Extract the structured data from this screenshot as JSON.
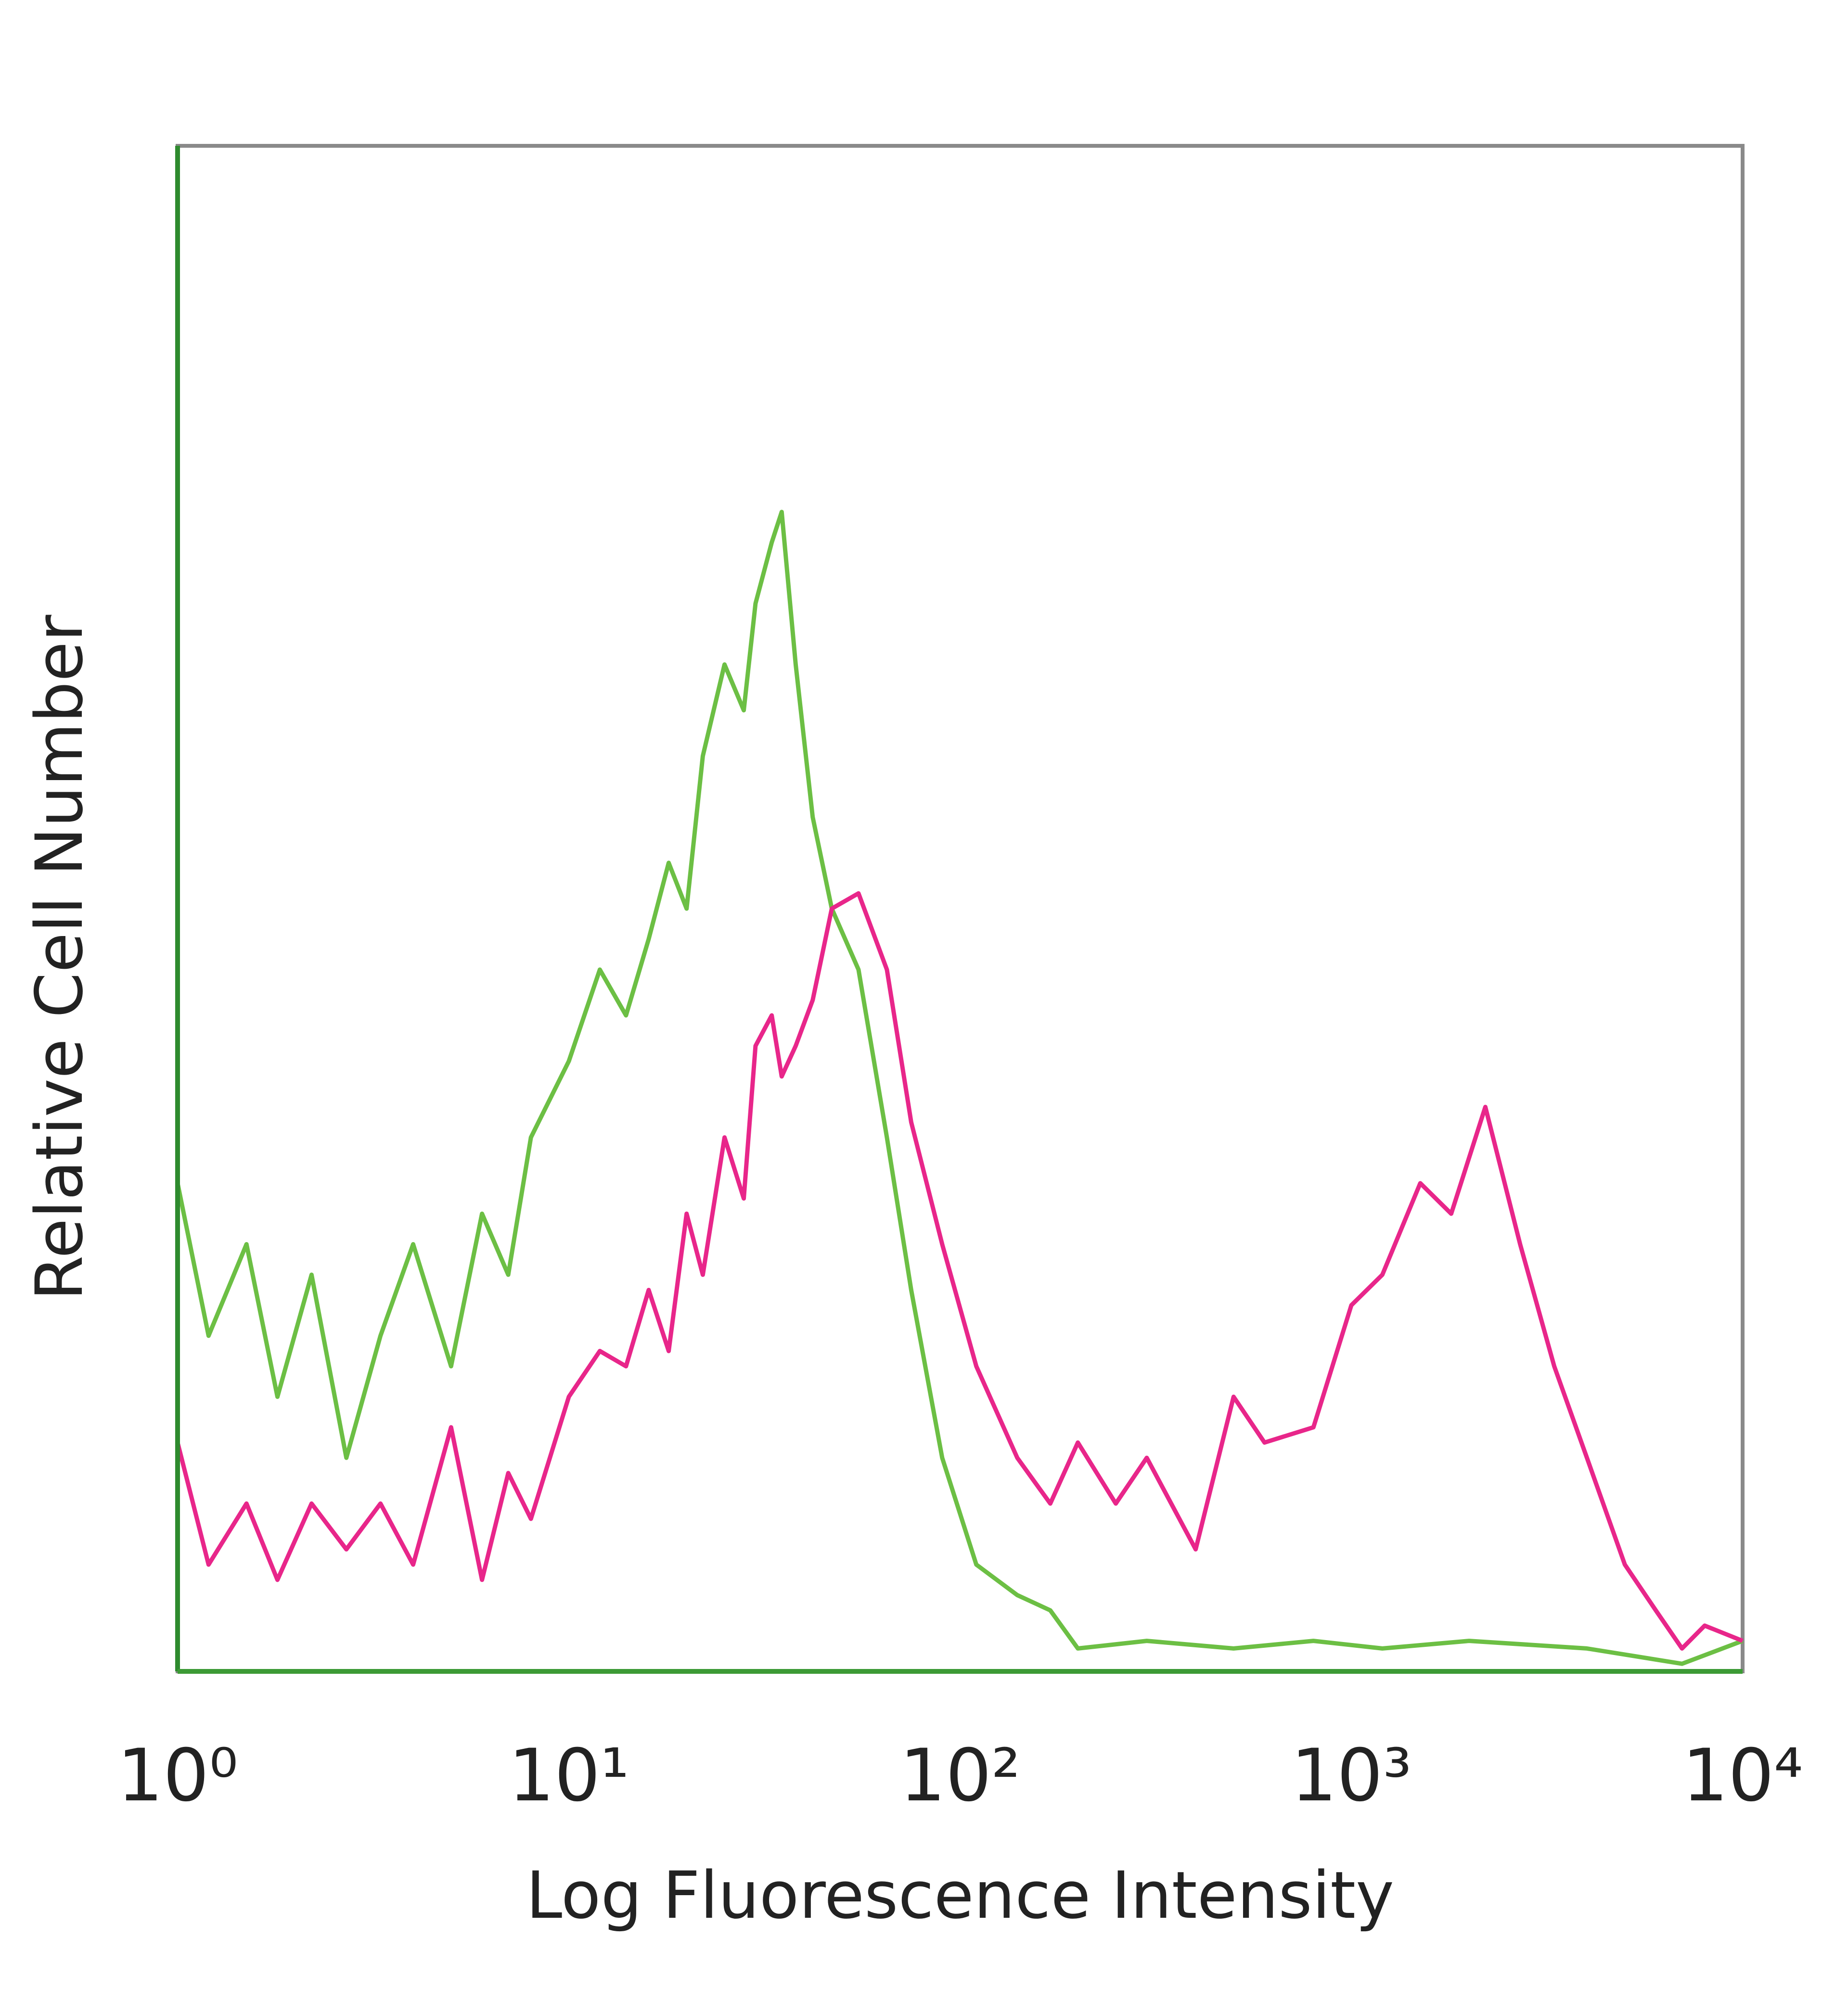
{
  "chart_data": {
    "type": "line",
    "x_label": "Log Fluorescence Intensity",
    "y_label": "Relative Cell Number",
    "log_x": true,
    "grid": false,
    "xlim": [
      1,
      10000
    ],
    "xticks": [
      {
        "value": 1,
        "label": "10⁰"
      },
      {
        "value": 10,
        "label": "10¹"
      },
      {
        "value": 100,
        "label": "10²"
      },
      {
        "value": 1000,
        "label": "10³"
      },
      {
        "value": 10000,
        "label": "10⁴"
      }
    ],
    "ylim": [
      0,
      100
    ],
    "series": [
      {
        "color": "#6cbf44",
        "x": [
          1,
          1.2,
          1.5,
          1.8,
          2.2,
          2.7,
          3.3,
          4,
          5,
          6,
          7,
          8,
          10,
          12,
          14,
          16,
          18,
          20,
          22,
          25,
          28,
          30,
          33,
          35,
          38,
          42,
          47,
          55,
          65,
          75,
          90,
          110,
          140,
          170,
          200,
          300,
          500,
          800,
          1200,
          2000,
          4000,
          7000,
          10000
        ],
        "values": [
          32,
          22,
          28,
          18,
          26,
          14,
          22,
          28,
          20,
          30,
          26,
          35,
          40,
          46,
          43,
          48,
          53,
          50,
          60,
          66,
          63,
          70,
          74,
          76,
          66,
          56,
          50,
          46,
          35,
          25,
          14,
          7,
          5,
          4,
          1.5,
          2,
          1.5,
          2,
          1.5,
          2,
          1.5,
          0.5,
          2
        ]
      },
      {
        "color": "#e8268a",
        "x": [
          1,
          1.2,
          1.5,
          1.8,
          2.2,
          2.7,
          3.3,
          4,
          5,
          6,
          7,
          8,
          10,
          12,
          14,
          16,
          18,
          20,
          22,
          25,
          28,
          30,
          33,
          35,
          38,
          42,
          47,
          55,
          65,
          75,
          90,
          110,
          140,
          170,
          200,
          250,
          300,
          400,
          500,
          600,
          800,
          1000,
          1200,
          1500,
          1800,
          2200,
          2700,
          3300,
          4000,
          5000,
          6000,
          7000,
          8000,
          10000
        ],
        "values": [
          15,
          7,
          11,
          6,
          11,
          8,
          11,
          7,
          16,
          6,
          13,
          10,
          18,
          21,
          20,
          25,
          21,
          30,
          26,
          35,
          31,
          41,
          43,
          39,
          41,
          44,
          50,
          51,
          46,
          36,
          28,
          20,
          14,
          11,
          15,
          11,
          14,
          8,
          18,
          15,
          16,
          24,
          26,
          32,
          30,
          37,
          28,
          20,
          14,
          7,
          4,
          1.5,
          3,
          2
        ]
      }
    ]
  }
}
